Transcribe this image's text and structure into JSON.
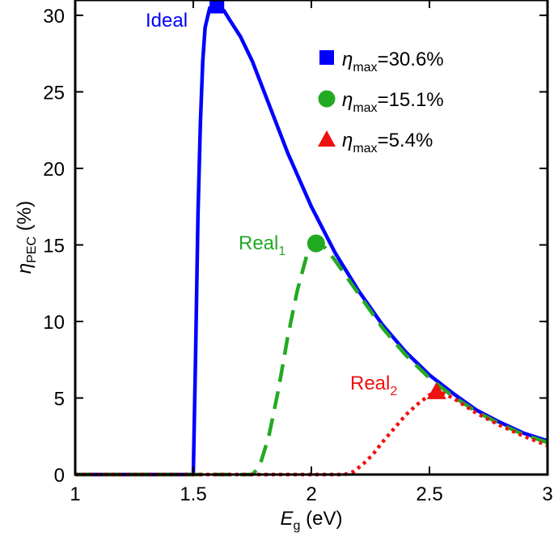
{
  "chart_data": {
    "type": "line",
    "xlabel": {
      "main": "E",
      "sub": "g",
      "unit": " (eV)"
    },
    "ylabel": {
      "main": "η",
      "sub": "PEC",
      "unit": " (%)"
    },
    "xlim": [
      1,
      3
    ],
    "ylim": [
      0,
      31
    ],
    "xticks": [
      "1",
      "1.5",
      "2",
      "2.5",
      "3"
    ],
    "yticks": [
      "0",
      "5",
      "10",
      "15",
      "20",
      "25",
      "30"
    ],
    "grid": false,
    "series": [
      {
        "name": "Ideal",
        "color": "#0000ff",
        "style": "solid",
        "points": [
          [
            1.0,
            0
          ],
          [
            1.49,
            0
          ],
          [
            1.5,
            0
          ],
          [
            1.51,
            8
          ],
          [
            1.52,
            17
          ],
          [
            1.53,
            23
          ],
          [
            1.54,
            27
          ],
          [
            1.55,
            29.2
          ],
          [
            1.57,
            30.5
          ],
          [
            1.6,
            30.6
          ],
          [
            1.63,
            30.3
          ],
          [
            1.65,
            29.8
          ],
          [
            1.7,
            28.6
          ],
          [
            1.75,
            27.0
          ],
          [
            1.8,
            25.0
          ],
          [
            1.9,
            21.0
          ],
          [
            2.0,
            17.5
          ],
          [
            2.1,
            14.5
          ],
          [
            2.2,
            12.0
          ],
          [
            2.3,
            9.8
          ],
          [
            2.4,
            8.0
          ],
          [
            2.5,
            6.5
          ],
          [
            2.6,
            5.3
          ],
          [
            2.7,
            4.2
          ],
          [
            2.8,
            3.4
          ],
          [
            2.9,
            2.7
          ],
          [
            3.0,
            2.2
          ]
        ]
      },
      {
        "name": "Real",
        "name_sub": "1",
        "color": "#22aa22",
        "style": "dashed",
        "points": [
          [
            1.0,
            0
          ],
          [
            1.75,
            0
          ],
          [
            1.78,
            0.5
          ],
          [
            1.82,
            2.5
          ],
          [
            1.86,
            5.5
          ],
          [
            1.9,
            9.0
          ],
          [
            1.94,
            12.0
          ],
          [
            1.98,
            14.3
          ],
          [
            2.02,
            15.1
          ],
          [
            2.06,
            14.8
          ],
          [
            2.1,
            14.0
          ],
          [
            2.2,
            11.8
          ],
          [
            2.3,
            9.6
          ],
          [
            2.4,
            7.8
          ],
          [
            2.5,
            6.3
          ],
          [
            2.6,
            5.1
          ],
          [
            2.7,
            4.1
          ],
          [
            2.8,
            3.3
          ],
          [
            2.9,
            2.6
          ],
          [
            3.0,
            2.1
          ]
        ]
      },
      {
        "name": "Real",
        "name_sub": "2",
        "color": "#ee1111",
        "style": "dotted",
        "points": [
          [
            1.0,
            0
          ],
          [
            2.14,
            0
          ],
          [
            2.18,
            0.2
          ],
          [
            2.22,
            0.7
          ],
          [
            2.26,
            1.3
          ],
          [
            2.3,
            2.1
          ],
          [
            2.35,
            3.0
          ],
          [
            2.4,
            3.9
          ],
          [
            2.45,
            4.6
          ],
          [
            2.5,
            5.2
          ],
          [
            2.53,
            5.4
          ],
          [
            2.56,
            5.3
          ],
          [
            2.6,
            5.0
          ],
          [
            2.65,
            4.5
          ],
          [
            2.7,
            4.0
          ],
          [
            2.8,
            3.2
          ],
          [
            2.9,
            2.5
          ],
          [
            3.0,
            1.9
          ]
        ]
      }
    ],
    "maxima": [
      {
        "x": 1.6,
        "y": 30.6,
        "marker": "square",
        "color": "#0000ff",
        "legend_value": "=30.6%"
      },
      {
        "x": 2.02,
        "y": 15.1,
        "marker": "circle",
        "color": "#22aa22",
        "legend_value": "=15.1%"
      },
      {
        "x": 2.53,
        "y": 5.4,
        "marker": "triangle",
        "color": "#ee1111",
        "legend_value": "=5.4%"
      }
    ],
    "legend": {
      "placement": "top-right",
      "symbol": "η",
      "sub": "max"
    }
  }
}
